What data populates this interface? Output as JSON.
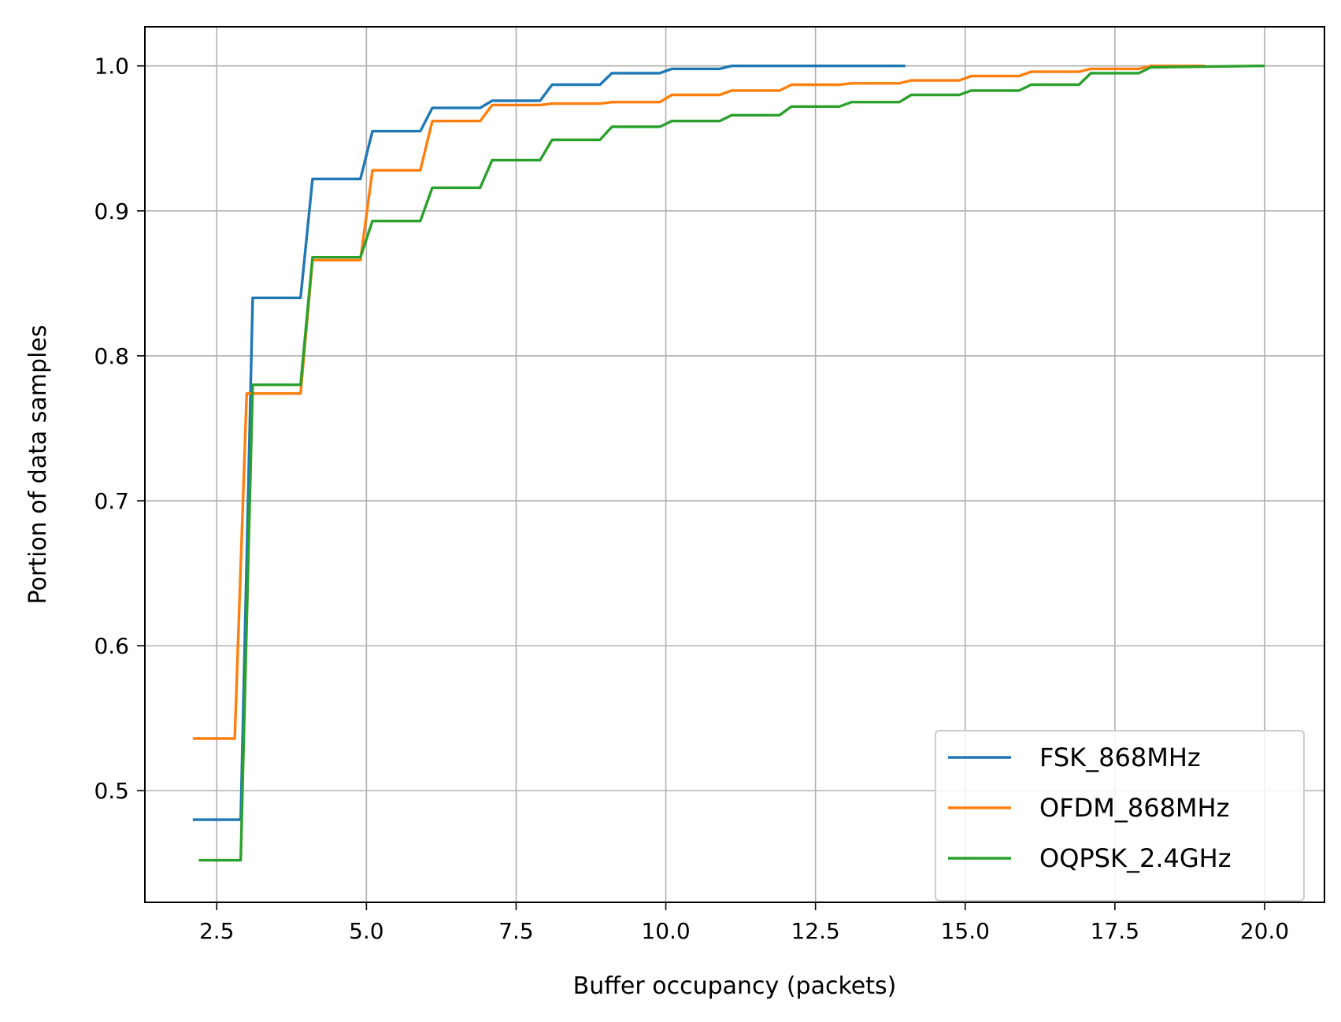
{
  "chart_data": {
    "type": "line",
    "title": "",
    "xlabel": "Buffer occupancy (packets)",
    "ylabel": "Portion of data samples",
    "xlim": [
      1.3,
      21.0
    ],
    "ylim": [
      0.423,
      1.027
    ],
    "xticks": [
      2.5,
      5.0,
      7.5,
      10.0,
      12.5,
      15.0,
      17.5,
      20.0
    ],
    "xtick_labels": [
      "2.5",
      "5.0",
      "7.5",
      "10.0",
      "12.5",
      "15.0",
      "17.5",
      "20.0"
    ],
    "yticks": [
      0.5,
      0.6,
      0.7,
      0.8,
      0.9,
      1.0
    ],
    "ytick_labels": [
      "0.5",
      "0.6",
      "0.7",
      "0.8",
      "0.9",
      "1.0"
    ],
    "grid": true,
    "legend_position": "lower-right",
    "series": [
      {
        "name": "FSK_868MHz",
        "color": "#1f77b4",
        "x": [
          2.1,
          2.9,
          3.1,
          3.9,
          4.1,
          4.9,
          5.1,
          5.9,
          6.1,
          6.9,
          7.1,
          7.9,
          8.1,
          8.9,
          9.1,
          9.9,
          10.1,
          10.9,
          11.1,
          11.9,
          12.1,
          12.9,
          13.1,
          13.9,
          14.0
        ],
        "y": [
          0.48,
          0.48,
          0.84,
          0.84,
          0.922,
          0.922,
          0.955,
          0.955,
          0.971,
          0.971,
          0.976,
          0.976,
          0.987,
          0.987,
          0.995,
          0.995,
          0.998,
          0.998,
          1.0,
          1.0,
          1.0,
          1.0,
          1.0,
          1.0,
          1.0
        ]
      },
      {
        "name": "OFDM_868MHz",
        "color": "#ff7f0e",
        "x": [
          2.1,
          2.8,
          3.0,
          3.9,
          4.1,
          4.9,
          5.1,
          5.9,
          6.1,
          6.9,
          7.1,
          7.9,
          8.1,
          8.9,
          9.1,
          9.9,
          10.1,
          10.9,
          11.1,
          11.9,
          12.1,
          12.9,
          13.1,
          13.9,
          14.1,
          14.9,
          15.1,
          15.9,
          16.1,
          16.9,
          17.1,
          17.9,
          18.1,
          19.0
        ],
        "y": [
          0.536,
          0.536,
          0.774,
          0.774,
          0.866,
          0.866,
          0.928,
          0.928,
          0.962,
          0.962,
          0.973,
          0.973,
          0.974,
          0.974,
          0.975,
          0.975,
          0.98,
          0.98,
          0.983,
          0.983,
          0.987,
          0.987,
          0.988,
          0.988,
          0.99,
          0.99,
          0.993,
          0.993,
          0.996,
          0.996,
          0.998,
          0.998,
          1.0,
          1.0
        ]
      },
      {
        "name": "OQPSK_2.4GHz",
        "color": "#2ca02c",
        "x": [
          2.2,
          2.9,
          3.1,
          3.9,
          4.1,
          4.9,
          5.1,
          5.9,
          6.1,
          6.9,
          7.1,
          7.9,
          8.1,
          8.9,
          9.1,
          9.9,
          10.1,
          10.9,
          11.1,
          11.9,
          12.1,
          12.9,
          13.1,
          13.9,
          14.1,
          14.9,
          15.1,
          15.9,
          16.1,
          16.9,
          17.1,
          17.9,
          18.1,
          19.9,
          20.0
        ],
        "y": [
          0.452,
          0.452,
          0.78,
          0.78,
          0.868,
          0.868,
          0.893,
          0.893,
          0.916,
          0.916,
          0.935,
          0.935,
          0.949,
          0.949,
          0.958,
          0.958,
          0.962,
          0.962,
          0.966,
          0.966,
          0.972,
          0.972,
          0.975,
          0.975,
          0.98,
          0.98,
          0.983,
          0.983,
          0.987,
          0.987,
          0.995,
          0.995,
          0.999,
          1.0,
          1.0
        ]
      }
    ]
  }
}
